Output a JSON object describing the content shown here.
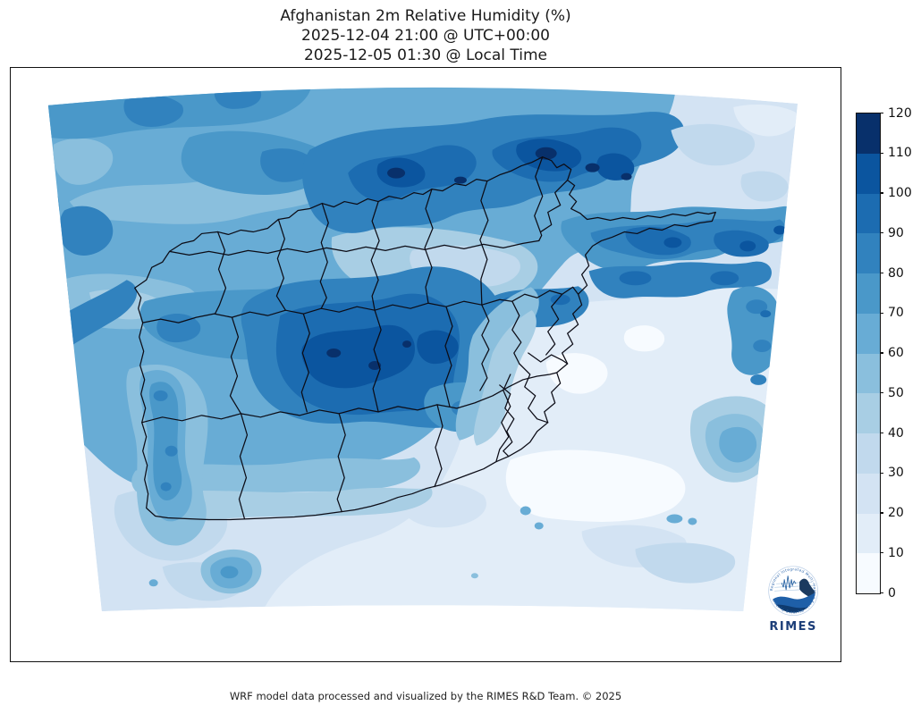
{
  "title": {
    "line1": "Afghanistan 2m Relative Humidity (%)",
    "line2": "2025-12-04 21:00 @ UTC+00:00",
    "line3": "2025-12-05 01:30 @ Local Time"
  },
  "footer": "WRF model data processed and visualized by the RIMES R&D Team. © 2025",
  "colorbar": {
    "ticks": [
      "120",
      "110",
      "100",
      "90",
      "80",
      "70",
      "60",
      "50",
      "40",
      "30",
      "20",
      "10",
      "0"
    ],
    "colors_top_to_bottom": [
      "#08306b",
      "#0b559f",
      "#1c6cb1",
      "#3182be",
      "#4a98c9",
      "#68acd5",
      "#8abfdd",
      "#a8cee4",
      "#c1d9ed",
      "#d3e3f3",
      "#e2edf8",
      "#f7fbff"
    ]
  },
  "logo": {
    "name": "RIMES",
    "motto": "Regional Integrated Multi-Hazard Early Warning System"
  },
  "chart_data": {
    "type": "heatmap",
    "title": "Afghanistan 2m Relative Humidity (%)",
    "variable": "2m Relative Humidity",
    "units": "%",
    "region": "Afghanistan",
    "valid_time_utc": "2025-12-04 21:00 @ UTC+00:00",
    "valid_time_local": "2025-12-05 01:30 @ Local Time",
    "projection": "conic (Lambert-style trapezoidal WRF domain)",
    "colormap": "Blues",
    "levels": [
      0,
      10,
      20,
      30,
      40,
      50,
      60,
      70,
      80,
      90,
      100,
      110,
      120
    ],
    "level_colors": [
      "#f7fbff",
      "#e2edf8",
      "#d3e3f3",
      "#c1d9ed",
      "#a8cee4",
      "#8abfdd",
      "#68acd5",
      "#4a98c9",
      "#3182be",
      "#1c6cb1",
      "#0b559f",
      "#08306b"
    ],
    "colorbar_range": [
      0,
      120
    ],
    "legend_position": "right vertical colorbar",
    "grid": false,
    "overlays": [
      "Afghanistan province boundaries (black lines)",
      "RIMES logo bottom-right"
    ],
    "spatial_pattern": [
      {
        "area": "northwest quadrant",
        "rh_percent": [
          60,
          80
        ]
      },
      {
        "area": "north-central mountain band",
        "rh_percent": [
          90,
          120
        ]
      },
      {
        "area": "central highlands (Ghor/Bamyan)",
        "rh_percent": [
          80,
          110
        ]
      },
      {
        "area": "northeast Wakhan ridge band",
        "rh_percent": [
          90,
          120
        ]
      },
      {
        "area": "far northeast corner",
        "rh_percent": [
          20,
          40
        ]
      },
      {
        "area": "east-central valley wedge",
        "rh_percent": [
          10,
          40
        ]
      },
      {
        "area": "south and southwest lowlands",
        "rh_percent": [
          10,
          30
        ]
      },
      {
        "area": "southwest moist tongue",
        "rh_percent": [
          50,
          90
        ]
      },
      {
        "area": "right-edge mid-level patch",
        "rh_percent": [
          50,
          70
        ]
      }
    ]
  }
}
